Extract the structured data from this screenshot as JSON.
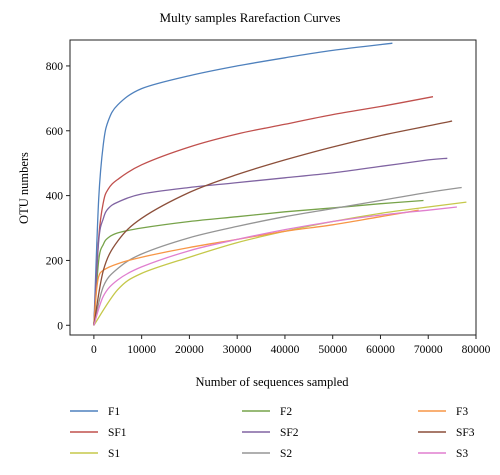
{
  "chart_data": {
    "type": "line",
    "title": "Multy samples Rarefaction Curves",
    "xlabel": "Number of sequences sampled",
    "ylabel": "OTU numbers",
    "xlim": [
      -5000,
      80000
    ],
    "ylim": [
      -30,
      880
    ],
    "xticks": [
      0,
      10000,
      20000,
      30000,
      40000,
      50000,
      60000,
      70000,
      80000
    ],
    "xtick_labels": [
      "0",
      "10000",
      "20000",
      "30000",
      "40000",
      "50000",
      "60000",
      "70000",
      "80000"
    ],
    "yticks": [
      0,
      200,
      400,
      600,
      800
    ],
    "ytick_labels": [
      "0",
      "200",
      "400",
      "600",
      "800"
    ],
    "grid": false,
    "legend_position": "bottom",
    "series": [
      {
        "name": "F1",
        "color": "#4f81bd",
        "x": [
          0,
          1000,
          2000,
          3000,
          5000,
          10000,
          20000,
          30000,
          40000,
          50000,
          62500
        ],
        "y": [
          0,
          390,
          560,
          630,
          680,
          730,
          770,
          800,
          825,
          848,
          870
        ]
      },
      {
        "name": "SF1",
        "color": "#c0504d",
        "x": [
          0,
          1000,
          2000,
          3000,
          5000,
          10000,
          20000,
          30000,
          40000,
          50000,
          60000,
          71000
        ],
        "y": [
          0,
          270,
          380,
          420,
          450,
          495,
          550,
          590,
          620,
          650,
          675,
          705
        ]
      },
      {
        "name": "S1",
        "color": "#c5c84a",
        "x": [
          0,
          5000,
          10000,
          20000,
          30000,
          40000,
          50000,
          60000,
          70000,
          78000
        ],
        "y": [
          0,
          110,
          160,
          210,
          255,
          290,
          320,
          345,
          365,
          380
        ]
      },
      {
        "name": "F2",
        "color": "#77a34a",
        "x": [
          0,
          1000,
          2000,
          3000,
          5000,
          10000,
          20000,
          30000,
          40000,
          50000,
          60000,
          69000
        ],
        "y": [
          0,
          200,
          250,
          270,
          285,
          300,
          320,
          335,
          350,
          362,
          375,
          385
        ]
      },
      {
        "name": "SF2",
        "color": "#8064a2",
        "x": [
          0,
          1000,
          2000,
          3000,
          5000,
          10000,
          20000,
          30000,
          40000,
          50000,
          60000,
          70000,
          74000
        ],
        "y": [
          0,
          260,
          330,
          360,
          380,
          405,
          425,
          440,
          455,
          470,
          490,
          510,
          515
        ]
      },
      {
        "name": "S2",
        "color": "#959595",
        "x": [
          0,
          2000,
          5000,
          10000,
          20000,
          30000,
          40000,
          50000,
          60000,
          70000,
          77000
        ],
        "y": [
          0,
          120,
          175,
          220,
          270,
          305,
          335,
          360,
          385,
          410,
          425
        ]
      },
      {
        "name": "F3",
        "color": "#f79646",
        "x": [
          0,
          500,
          1000,
          2000,
          5000,
          10000,
          20000,
          30000,
          40000,
          50000,
          60000,
          68000
        ],
        "y": [
          0,
          100,
          150,
          170,
          190,
          210,
          240,
          265,
          290,
          310,
          335,
          355
        ]
      },
      {
        "name": "SF3",
        "color": "#8c4f3a",
        "x": [
          0,
          2000,
          5000,
          10000,
          20000,
          30000,
          40000,
          50000,
          60000,
          70000,
          75000
        ],
        "y": [
          0,
          170,
          260,
          330,
          410,
          465,
          510,
          550,
          585,
          615,
          630
        ]
      },
      {
        "name": "S3",
        "color": "#e07fcf",
        "x": [
          0,
          2000,
          5000,
          10000,
          20000,
          30000,
          40000,
          50000,
          60000,
          70000,
          76000
        ],
        "y": [
          0,
          90,
          140,
          180,
          230,
          265,
          295,
          320,
          340,
          355,
          365
        ]
      }
    ]
  }
}
